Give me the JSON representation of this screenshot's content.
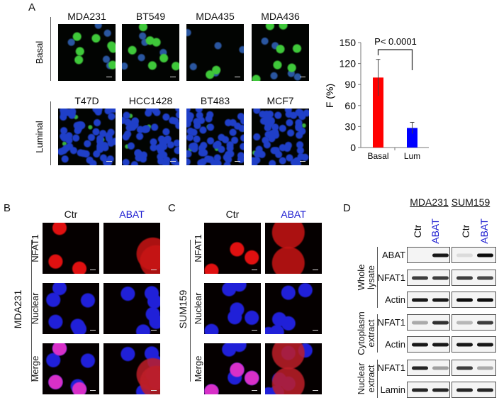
{
  "panelA": {
    "label": "A",
    "rows": [
      {
        "label": "Basal",
        "cells": [
          "MDA231",
          "BT549",
          "MDA435",
          "MDA436"
        ]
      },
      {
        "label": "Luminal",
        "cells": [
          "T47D",
          "HCC1428",
          "BT483",
          "MCF7"
        ]
      }
    ]
  },
  "chart_data": {
    "type": "bar",
    "categories": [
      "Basal",
      "Lum"
    ],
    "values": [
      100,
      28
    ],
    "errors": [
      26,
      8
    ],
    "colors": [
      "#ff0000",
      "#0000ff"
    ],
    "ylabel": "F (%)",
    "ylim": [
      0,
      150
    ],
    "yticks": [
      "0",
      "30",
      "60",
      "90",
      "120",
      "150"
    ],
    "annotation": "P< 0.0001"
  },
  "panelB": {
    "label": "B",
    "cell_line": "MDA231",
    "columns": [
      "Ctr",
      "ABAT"
    ],
    "rows": [
      "NFAT1",
      "Nuclear",
      "Merge"
    ]
  },
  "panelC": {
    "label": "C",
    "cell_line": "SUM159",
    "columns": [
      "Ctr",
      "ABAT"
    ],
    "rows": [
      "NFAT1",
      "Nuclear",
      "Merge"
    ]
  },
  "panelD": {
    "label": "D",
    "cell_lines": [
      "MDA231",
      "SUM159"
    ],
    "lanes": [
      "Ctr",
      "ABAT",
      "Ctr",
      "ABAT"
    ],
    "groups": [
      {
        "line1": "Whole",
        "line2": "lysate"
      },
      {
        "line1": "Cytoplasm",
        "line2": "extract"
      },
      {
        "line1": "Nuclear",
        "line2": "extract"
      }
    ],
    "blots": [
      {
        "label": "ABAT",
        "bands": [
          0,
          0.9,
          0.1,
          0.95
        ]
      },
      {
        "label": "NFAT1",
        "bands": [
          0.75,
          0.75,
          0.75,
          0.7
        ]
      },
      {
        "label": "Actin",
        "bands": [
          0.9,
          0.9,
          0.95,
          0.95
        ]
      },
      {
        "label": "NFAT1",
        "bands": [
          0.3,
          0.8,
          0.25,
          0.75
        ]
      },
      {
        "label": "Actin",
        "bands": [
          0.9,
          0.9,
          0.9,
          0.9
        ]
      },
      {
        "label": "NFAT1",
        "bands": [
          0.85,
          0.35,
          0.75,
          0.3
        ]
      },
      {
        "label": "Lamin",
        "bands": [
          0.85,
          0.85,
          0.85,
          0.85
        ]
      }
    ]
  },
  "colors": {
    "highlight": "#1a1ad0"
  }
}
